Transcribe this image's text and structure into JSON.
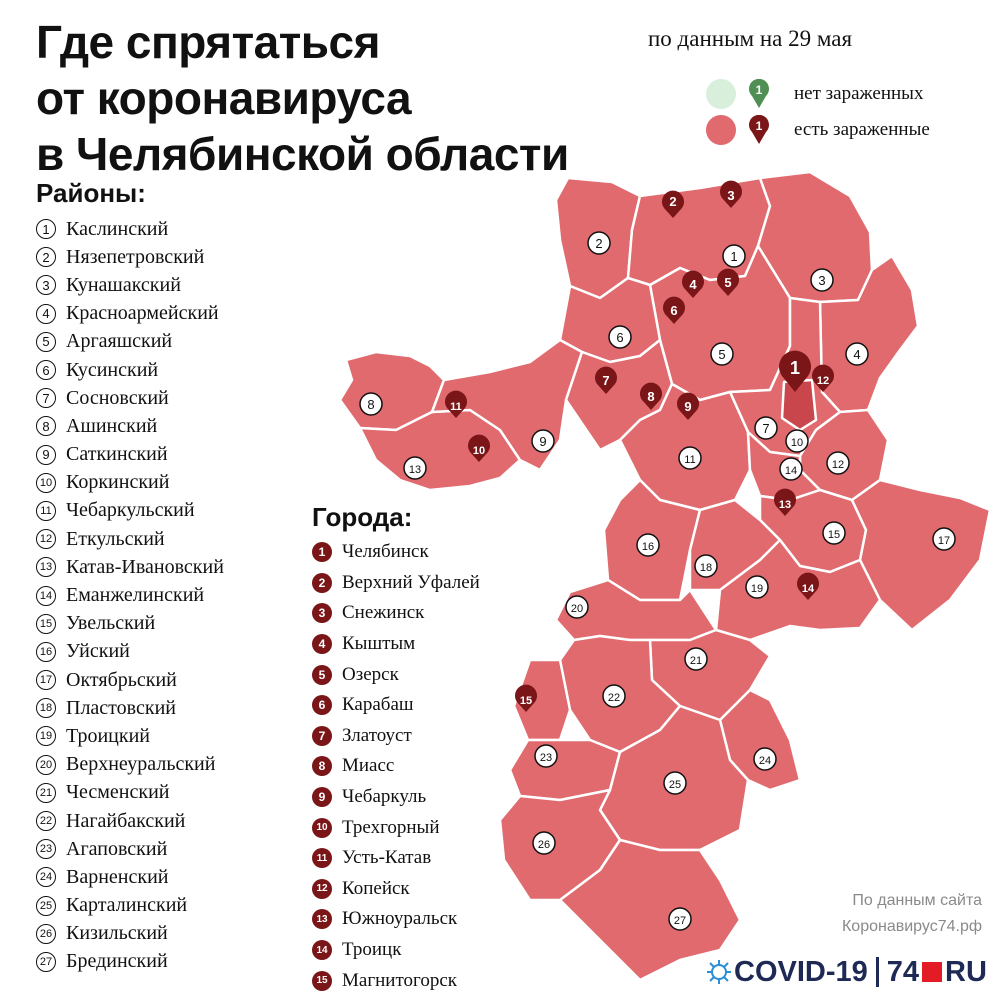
{
  "title_lines": [
    "Где спрятаться",
    "от коронавируса",
    "в Челябинской области"
  ],
  "date_note": "по данным на 29 мая",
  "legend": {
    "no_infected": "нет зараженных",
    "infected": "есть зараженные",
    "sample_number": "1",
    "no_color": "#d8efdb",
    "no_pin_color": "#4f8f54",
    "yes_color": "#e06a6e",
    "yes_pin_color": "#7a1518"
  },
  "districts_heading": "Районы:",
  "districts": [
    {
      "num": "1",
      "name": "Каслинский"
    },
    {
      "num": "2",
      "name": "Нязепетровский"
    },
    {
      "num": "3",
      "name": "Кунашакский"
    },
    {
      "num": "4",
      "name": "Красноармейский"
    },
    {
      "num": "5",
      "name": "Аргаяшский"
    },
    {
      "num": "6",
      "name": "Кусинский"
    },
    {
      "num": "7",
      "name": "Сосновский"
    },
    {
      "num": "8",
      "name": "Ашинский"
    },
    {
      "num": "9",
      "name": "Саткинский"
    },
    {
      "num": "10",
      "name": "Коркинский"
    },
    {
      "num": "11",
      "name": "Чебаркульский"
    },
    {
      "num": "12",
      "name": "Еткульский"
    },
    {
      "num": "13",
      "name": "Катав-Ивановский"
    },
    {
      "num": "14",
      "name": "Еманжелинский"
    },
    {
      "num": "15",
      "name": "Увельский"
    },
    {
      "num": "16",
      "name": "Уйский"
    },
    {
      "num": "17",
      "name": "Октябрьский"
    },
    {
      "num": "18",
      "name": "Пластовский"
    },
    {
      "num": "19",
      "name": "Троицкий"
    },
    {
      "num": "20",
      "name": "Верхнеуральский"
    },
    {
      "num": "21",
      "name": "Чесменский"
    },
    {
      "num": "22",
      "name": "Нагайбакский"
    },
    {
      "num": "23",
      "name": "Агаповский"
    },
    {
      "num": "24",
      "name": "Варненский"
    },
    {
      "num": "25",
      "name": "Карталинский"
    },
    {
      "num": "26",
      "name": "Кизильский"
    },
    {
      "num": "27",
      "name": "Брединский"
    }
  ],
  "cities_heading": "Города:",
  "cities": [
    {
      "num": "1",
      "name": "Челябинск"
    },
    {
      "num": "2",
      "name": "Верхний Уфалей"
    },
    {
      "num": "3",
      "name": "Снежинск"
    },
    {
      "num": "4",
      "name": "Кыштым"
    },
    {
      "num": "5",
      "name": "Озерск"
    },
    {
      "num": "6",
      "name": "Карабаш"
    },
    {
      "num": "7",
      "name": "Златоуст"
    },
    {
      "num": "8",
      "name": "Миасс"
    },
    {
      "num": "9",
      "name": "Чебаркуль"
    },
    {
      "num": "10",
      "name": "Трехгорный"
    },
    {
      "num": "11",
      "name": "Усть-Катав"
    },
    {
      "num": "12",
      "name": "Копейск"
    },
    {
      "num": "13",
      "name": "Южноуральск"
    },
    {
      "num": "14",
      "name": "Троицк"
    },
    {
      "num": "15",
      "name": "Магнитогорск"
    }
  ],
  "map_colors": {
    "region": "#e06a6e",
    "border": "#ffffff",
    "city_area": "#c9474c",
    "pin": "#7a1518"
  },
  "source_line1": "По данным сайта",
  "source_line2": "Коронавирус74.рф",
  "logo": {
    "covid": "COVID-19",
    "num": "74",
    "ru": "RU"
  }
}
